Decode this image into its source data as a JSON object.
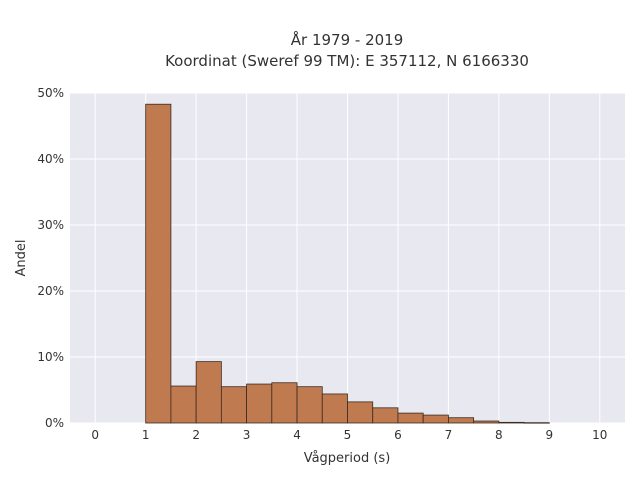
{
  "chart_data": {
    "type": "bar",
    "title": "År 1979 - 2019",
    "subtitle": "Koordinat (Sweref 99 TM): E 357112, N 6166330",
    "xlabel": "Vågperiod (s)",
    "ylabel": "Andel",
    "xlim": [
      -0.5,
      10.5
    ],
    "ylim": [
      0,
      50
    ],
    "x_ticks": [
      0,
      1,
      2,
      3,
      4,
      5,
      6,
      7,
      8,
      9,
      10
    ],
    "y_ticks": [
      0,
      10,
      20,
      30,
      40,
      50
    ],
    "y_tick_labels": [
      "0%",
      "10%",
      "20%",
      "30%",
      "40%",
      "50%"
    ],
    "bin_width": 0.5,
    "bins": [
      1.0,
      1.5,
      2.0,
      2.5,
      3.0,
      3.5,
      4.0,
      4.5,
      5.0,
      5.5,
      6.0,
      6.5,
      7.0,
      7.5,
      8.0,
      8.5
    ],
    "values": [
      48.3,
      5.6,
      9.3,
      5.5,
      5.9,
      6.1,
      5.5,
      4.4,
      3.2,
      2.3,
      1.5,
      1.2,
      0.8,
      0.3,
      0.1,
      0.05
    ],
    "grid": true,
    "bar_color": "#c07a50",
    "bar_edge_color": "#3b2a1e",
    "plot_background": "#e5e5ef",
    "legend": "none"
  }
}
